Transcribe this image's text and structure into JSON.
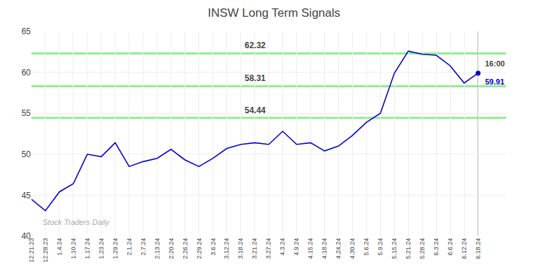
{
  "chart_data": {
    "type": "line",
    "title": "INSW Long Term Signals",
    "categories": [
      "12.21.23",
      "12.28.23",
      "1.4.24",
      "1.10.24",
      "1.17.24",
      "1.23.24",
      "1.29.24",
      "2.1.24",
      "2.7.24",
      "2.13.24",
      "2.20.24",
      "2.26.24",
      "2.29.24",
      "3.6.24",
      "3.12.24",
      "3.18.24",
      "3.21.24",
      "3.27.24",
      "4.3.24",
      "4.9.24",
      "4.15.24",
      "4.18.24",
      "4.24.24",
      "4.30.24",
      "5.6.24",
      "5.9.24",
      "5.15.24",
      "5.21.24",
      "5.28.24",
      "6.3.24",
      "6.6.24",
      "6.12.24",
      "6.18.24"
    ],
    "values": [
      44.5,
      43.1,
      45.4,
      46.4,
      50.0,
      49.7,
      51.4,
      48.5,
      49.1,
      49.5,
      50.6,
      49.3,
      48.5,
      49.5,
      50.7,
      51.2,
      51.4,
      51.2,
      52.8,
      51.2,
      51.4,
      50.4,
      51.0,
      52.3,
      53.9,
      55.0,
      59.9,
      62.6,
      62.2,
      62.1,
      60.8,
      58.7,
      59.91
    ],
    "color": "#0000CC",
    "hlines": [
      {
        "value": 54.44,
        "label": "54.44",
        "color": "#90EE90"
      },
      {
        "value": 58.31,
        "label": "58.31",
        "color": "#90EE90"
      },
      {
        "value": 62.32,
        "label": "62.32",
        "color": "#90EE90"
      }
    ],
    "annotations": [
      {
        "text": "16:00"
      },
      {
        "text": "59.91",
        "color": "#0000CC"
      },
      {
        "text": "Stock Traders Daily"
      }
    ],
    "ylim": [
      40,
      65
    ],
    "yticks": [
      40,
      45,
      50,
      55,
      60,
      65
    ],
    "grid": true
  }
}
